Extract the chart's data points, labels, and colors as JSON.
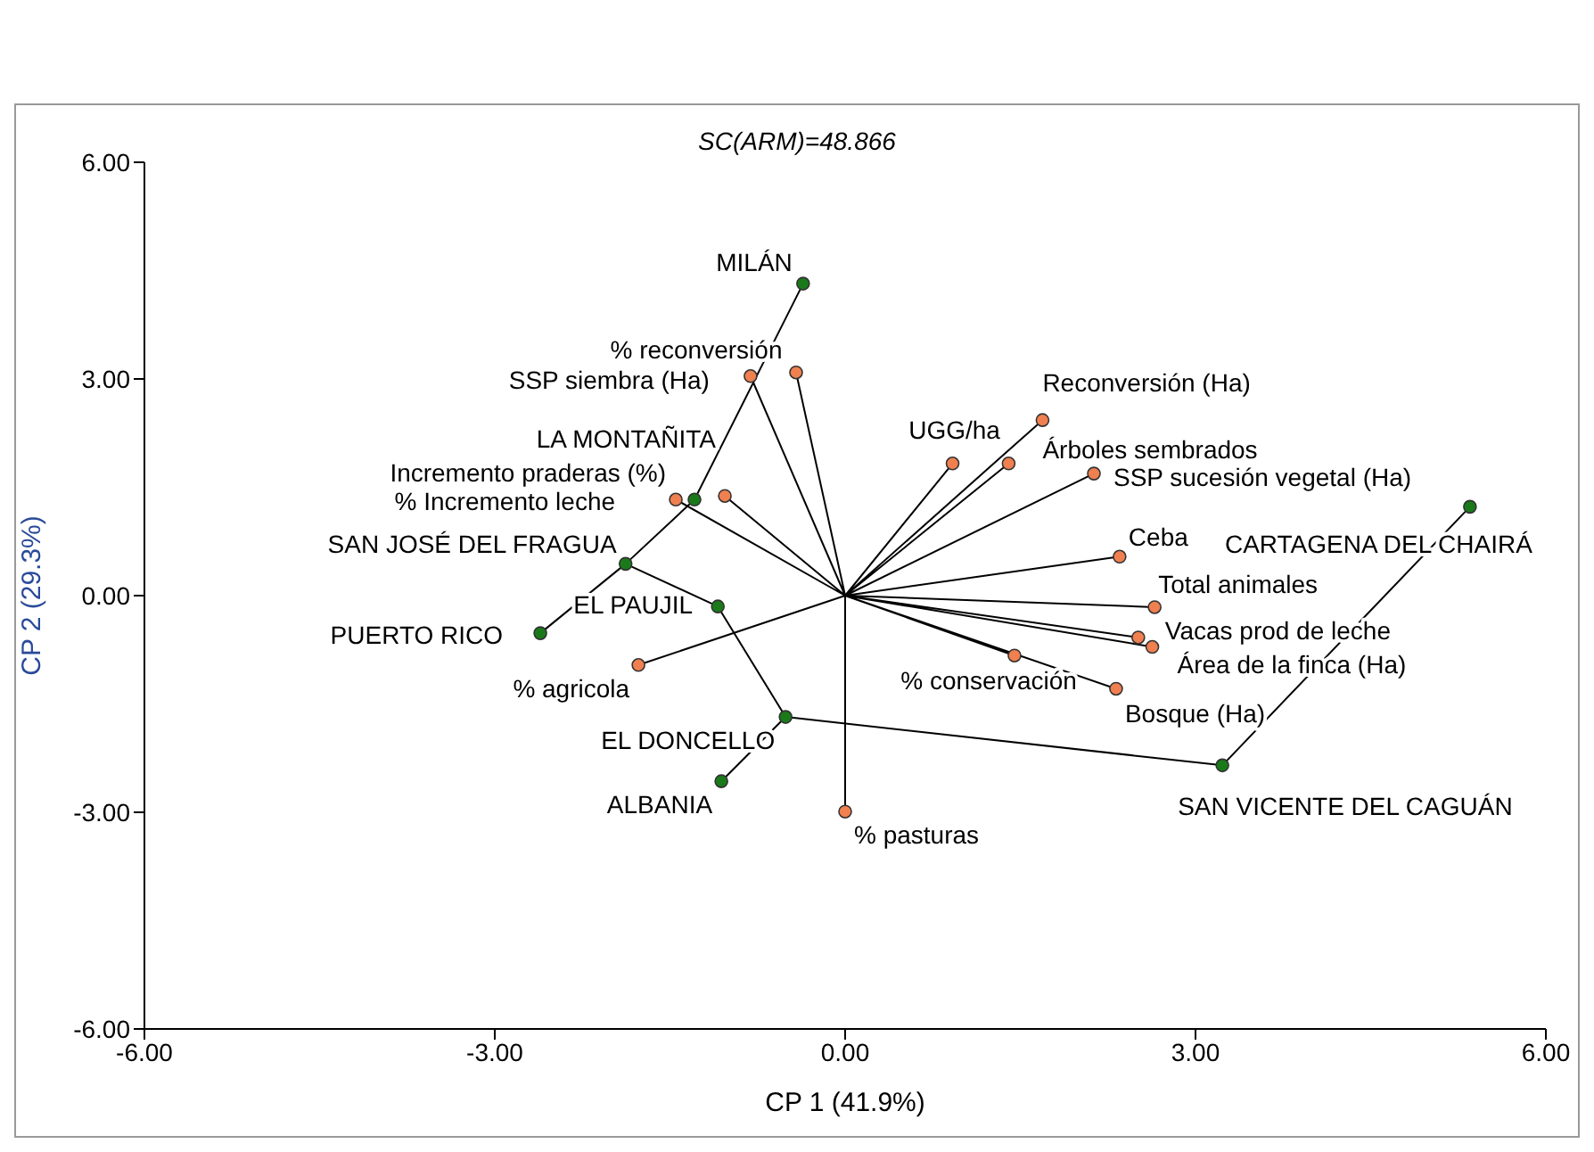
{
  "chart_data": {
    "type": "scatter",
    "title": "SC(ARM)=48.866",
    "xlabel": "CP 1 (41.9%)",
    "ylabel": "CP 2 (29.3%)",
    "xlim": [
      -6,
      6
    ],
    "ylim": [
      -6,
      6
    ],
    "xticks": [
      {
        "value": -6,
        "label": "-6.00"
      },
      {
        "value": -3,
        "label": "-3.00"
      },
      {
        "value": 0,
        "label": "0.00"
      },
      {
        "value": 3,
        "label": "3.00"
      },
      {
        "value": 6,
        "label": "6.00"
      }
    ],
    "yticks": [
      {
        "value": -6,
        "label": "-6.00"
      },
      {
        "value": -3,
        "label": "-3.00"
      },
      {
        "value": 0,
        "label": "0.00"
      },
      {
        "value": 3,
        "label": "3.00"
      },
      {
        "value": 6,
        "label": "6.00"
      }
    ],
    "grid": false,
    "marker": "circle",
    "series": [
      {
        "type": "line",
        "marker": "none",
        "color": "#000000",
        "x": [
          0,
          -0.42,
          null,
          0,
          -0.81,
          null,
          0,
          -1.03,
          null,
          0,
          -1.45,
          null,
          0,
          -1.77,
          null,
          0,
          0.0,
          null,
          0,
          0.92,
          null,
          0,
          1.69,
          null,
          0,
          1.4,
          null,
          0,
          2.13,
          null,
          0,
          2.35,
          null,
          0,
          2.65,
          null,
          0,
          2.51,
          null,
          0,
          2.63,
          null,
          0,
          1.45,
          null,
          0,
          2.32
        ],
        "values": [
          0,
          3.09,
          null,
          0,
          3.04,
          null,
          0,
          1.38,
          null,
          0,
          1.33,
          null,
          0,
          -0.96,
          null,
          0,
          -2.99,
          null,
          0,
          1.83,
          null,
          0,
          2.43,
          null,
          0,
          1.83,
          null,
          0,
          1.69,
          null,
          0,
          0.54,
          null,
          0,
          -0.16,
          null,
          0,
          -0.58,
          null,
          0,
          -0.71,
          null,
          0,
          -0.83,
          null,
          0,
          -1.29
        ]
      },
      {
        "type": "line",
        "marker": "none",
        "color": "#000000",
        "x": [
          -0.36,
          -1.29,
          -1.88,
          -2.61,
          null,
          -1.88,
          -1.09,
          -0.51,
          -1.06,
          null,
          -0.51,
          3.23,
          5.35
        ],
        "values": [
          4.32,
          1.33,
          0.44,
          -0.52,
          null,
          0.44,
          -0.15,
          -1.68,
          -2.57,
          null,
          -1.68,
          -2.35,
          1.23
        ]
      },
      {
        "color": "#f08050",
        "x": [
          -0.42,
          -0.81,
          -1.03,
          -1.45,
          -1.77,
          0.0,
          0.92,
          1.69,
          1.4,
          2.13,
          2.35,
          2.65,
          2.51,
          2.63,
          1.45,
          2.32
        ],
        "values": [
          3.09,
          3.04,
          1.38,
          1.33,
          -0.96,
          -2.99,
          1.83,
          2.43,
          1.83,
          1.69,
          0.54,
          -0.16,
          -0.58,
          -0.71,
          -0.83,
          -1.29
        ]
      },
      {
        "color": "#1a7a1a",
        "x": [
          -0.36,
          -1.29,
          -1.88,
          -1.09,
          -2.61,
          -0.51,
          -1.06,
          3.23,
          5.35
        ],
        "values": [
          4.32,
          1.33,
          0.44,
          -0.15,
          -0.52,
          -1.68,
          -2.57,
          -2.35,
          1.23
        ]
      }
    ],
    "annotations": [
      {
        "text": "% reconversión",
        "x": -0.42,
        "y": 3.09
      },
      {
        "text": "SSP siembra (Ha)",
        "x": -0.81,
        "y": 3.04
      },
      {
        "text": "Incremento praderas (%)",
        "x": -1.03,
        "y": 1.38
      },
      {
        "text": "% Incremento leche",
        "x": -1.45,
        "y": 1.33
      },
      {
        "text": "% agricola",
        "x": -1.77,
        "y": -0.96
      },
      {
        "text": "% pasturas",
        "x": 0.0,
        "y": -2.99
      },
      {
        "text": "UGG/ha",
        "x": 0.92,
        "y": 1.83
      },
      {
        "text": "Reconversión (Ha)",
        "x": 1.69,
        "y": 2.43
      },
      {
        "text": "Árboles sembrados",
        "x": 1.4,
        "y": 1.83
      },
      {
        "text": "SSP sucesión vegetal (Ha)",
        "x": 2.13,
        "y": 1.69
      },
      {
        "text": "Ceba",
        "x": 2.35,
        "y": 0.54
      },
      {
        "text": "Total animales",
        "x": 2.65,
        "y": -0.16
      },
      {
        "text": "Vacas prod de leche",
        "x": 2.51,
        "y": -0.58
      },
      {
        "text": "Área de la finca  (Ha)",
        "x": 2.63,
        "y": -0.71
      },
      {
        "text": "% conservación",
        "x": 1.45,
        "y": -0.83
      },
      {
        "text": "Bosque (Ha)",
        "x": 2.32,
        "y": -1.29
      },
      {
        "text": "MILÁN",
        "x": -0.36,
        "y": 4.32
      },
      {
        "text": "LA MONTAÑITA",
        "x": -1.29,
        "y": 1.33
      },
      {
        "text": "SAN JOSÉ DEL FRAGUA",
        "x": -1.88,
        "y": 0.44
      },
      {
        "text": "EL PAUJIL",
        "x": -1.09,
        "y": -0.15
      },
      {
        "text": "PUERTO RICO",
        "x": -2.61,
        "y": -0.52
      },
      {
        "text": "EL DONCELLO",
        "x": -0.51,
        "y": -1.68
      },
      {
        "text": "ALBANIA",
        "x": -1.06,
        "y": -2.57
      },
      {
        "text": "SAN VICENTE DEL CAGUÁN",
        "x": 3.23,
        "y": -2.35
      },
      {
        "text": "CARTAGENA DEL CHAIRÁ",
        "x": 5.35,
        "y": 1.23
      }
    ]
  }
}
